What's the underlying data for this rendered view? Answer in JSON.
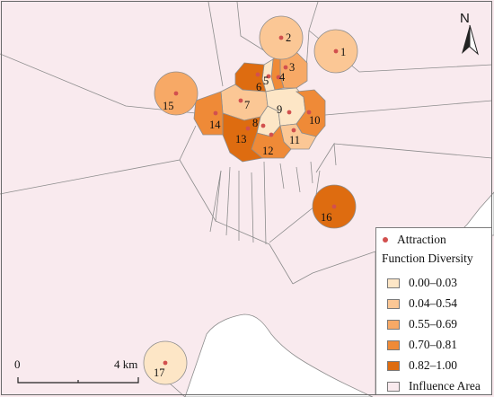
{
  "legend": {
    "attraction_label": "Attraction",
    "title": "Function Diversity",
    "classes": [
      {
        "label": "0.00–0.03",
        "color": "#fde6c6"
      },
      {
        "label": "0.04–0.54",
        "color": "#fbc795"
      },
      {
        "label": "0.55–0.69",
        "color": "#f7a966"
      },
      {
        "label": "0.70–0.81",
        "color": "#ef8a37"
      },
      {
        "label": "0.82–1.00",
        "color": "#de6c10"
      }
    ],
    "influence_label": "Influence Area",
    "influence_color": "#f9eaee"
  },
  "colors": {
    "background": "#f9eaee",
    "water": "#ffffff",
    "boundary": "#8d8d8d",
    "attraction_dot": "#d2504e"
  },
  "scale_bar": {
    "start_label": "0",
    "end_label": "4 km"
  },
  "north_arrow": {
    "label": "N"
  },
  "attractions": [
    {
      "id": "1",
      "class": 1
    },
    {
      "id": "2",
      "class": 1
    },
    {
      "id": "3",
      "class": 2
    },
    {
      "id": "4",
      "class": 3
    },
    {
      "id": "5",
      "class": 0
    },
    {
      "id": "6",
      "class": 4
    },
    {
      "id": "7",
      "class": 1
    },
    {
      "id": "8",
      "class": 0
    },
    {
      "id": "9",
      "class": 0
    },
    {
      "id": "10",
      "class": 3
    },
    {
      "id": "11",
      "class": 1
    },
    {
      "id": "12",
      "class": 3
    },
    {
      "id": "13",
      "class": 4
    },
    {
      "id": "14",
      "class": 3
    },
    {
      "id": "15",
      "class": 2
    },
    {
      "id": "16",
      "class": 4
    },
    {
      "id": "17",
      "class": 0
    }
  ]
}
